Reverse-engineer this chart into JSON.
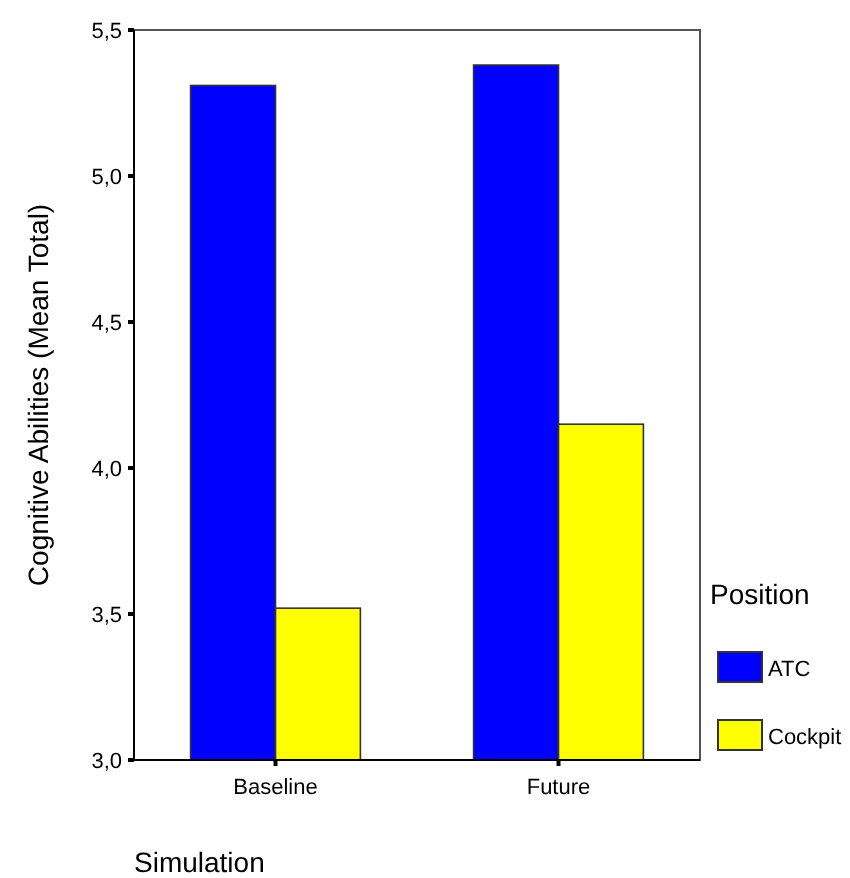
{
  "chart_data": {
    "type": "bar",
    "xlabel": "Simulation",
    "ylabel": "Cognitive Abilities (Mean Total)",
    "legend_title": "Position",
    "categories": [
      "Baseline",
      "Future"
    ],
    "series": [
      {
        "name": "ATC",
        "color": "#0000ff",
        "values": [
          5.31,
          5.38
        ]
      },
      {
        "name": "Cockpit",
        "color": "#ffff00",
        "values": [
          3.52,
          4.15
        ]
      }
    ],
    "ylim": [
      3,
      5.5
    ],
    "yticks": [
      {
        "value": 3,
        "label": "3,0"
      },
      {
        "value": 3.5,
        "label": "3,5"
      },
      {
        "value": 4,
        "label": "4,0"
      },
      {
        "value": 4.5,
        "label": "4,5"
      },
      {
        "value": 5,
        "label": "5,0"
      },
      {
        "value": 5.5,
        "label": "5,5"
      }
    ],
    "legend": "right",
    "grid": false
  }
}
